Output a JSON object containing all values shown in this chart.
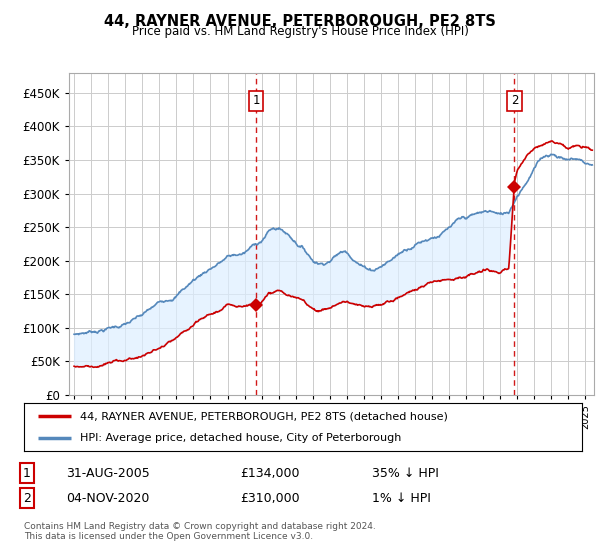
{
  "title": "44, RAYNER AVENUE, PETERBOROUGH, PE2 8TS",
  "subtitle": "Price paid vs. HM Land Registry's House Price Index (HPI)",
  "legend_line1": "44, RAYNER AVENUE, PETERBOROUGH, PE2 8TS (detached house)",
  "legend_line2": "HPI: Average price, detached house, City of Peterborough",
  "annotation1": {
    "num": "1",
    "date": "31-AUG-2005",
    "price": "£134,000",
    "hpi": "35% ↓ HPI"
  },
  "annotation2": {
    "num": "2",
    "date": "04-NOV-2020",
    "price": "£310,000",
    "hpi": "1% ↓ HPI"
  },
  "footer": "Contains HM Land Registry data © Crown copyright and database right 2024.\nThis data is licensed under the Open Government Licence v3.0.",
  "red_color": "#cc0000",
  "blue_color": "#5588bb",
  "fill_color": "#ddeeff",
  "dashed_color": "#cc0000",
  "background_color": "#ffffff",
  "grid_color": "#cccccc",
  "ylim": [
    0,
    480000
  ],
  "yticks": [
    0,
    50000,
    100000,
    150000,
    200000,
    250000,
    300000,
    350000,
    400000,
    450000
  ],
  "xlim_start": 1994.7,
  "xlim_end": 2025.5,
  "point1_x": 2005.667,
  "point1_y": 134000,
  "point2_x": 2020.833,
  "point2_y": 310000
}
